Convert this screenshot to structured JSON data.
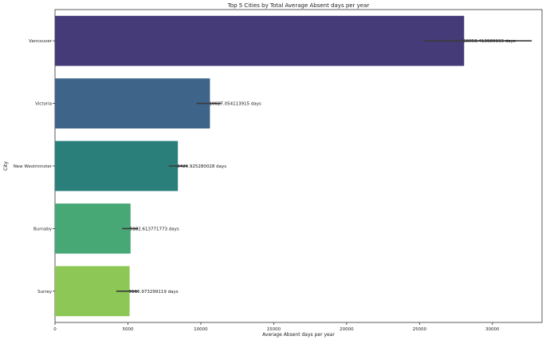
{
  "chart_data": {
    "type": "bar",
    "orientation": "horizontal",
    "title": "Top 5 Cities by Total Average Absent days per year",
    "xlabel": "Average Absent days per year",
    "ylabel": "City",
    "categories": [
      "Vancouver",
      "Victoria",
      "New Westminster",
      "Burnaby",
      "Surrey"
    ],
    "values": [
      28058.413989933,
      10627.054113915,
      8426.925280028,
      5182.613771773,
      5116.973299119
    ],
    "error_bars": [
      [
        25300,
        32700
      ],
      [
        9700,
        11400
      ],
      [
        7800,
        9100
      ],
      [
        4600,
        5700
      ],
      [
        4200,
        5700
      ]
    ],
    "data_labels": [
      "28058.413989933 days",
      "10627.054113915 days",
      "8426.925280028 days",
      "5182.613771773 days",
      "5116.973299119 days"
    ],
    "colors": [
      "#453b78",
      "#3e6589",
      "#2a7f7b",
      "#47a876",
      "#8dc756"
    ],
    "error_bar_color": "#3a3a3a",
    "xlim": [
      0,
      33400
    ],
    "xticks": [
      0,
      5000,
      10000,
      15000,
      20000,
      25000,
      30000
    ],
    "xtick_labels": [
      "0",
      "5000",
      "10000",
      "15000",
      "20000",
      "25000",
      "30000"
    ],
    "grid": false,
    "legend": "none"
  }
}
